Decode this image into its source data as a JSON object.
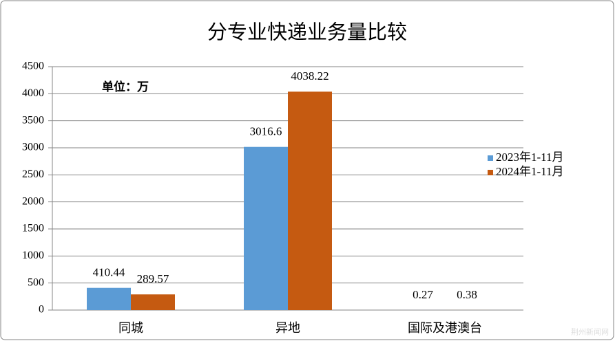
{
  "chart_data": {
    "type": "bar",
    "title": "分专业快递业务量比较",
    "annotation": "单位：万",
    "watermark": "荆州新闻网",
    "categories": [
      "同城",
      "异地",
      "国际及港澳台"
    ],
    "series": [
      {
        "name": "2023年1-11月",
        "color": "#5b9bd5",
        "values": [
          410.44,
          3016.6,
          0.27
        ]
      },
      {
        "name": "2024年1-11月",
        "color": "#c55a11",
        "values": [
          289.57,
          4038.22,
          0.38
        ]
      }
    ],
    "ylim": [
      0,
      4500
    ],
    "yticks": [
      0,
      500,
      1000,
      1500,
      2000,
      2500,
      3000,
      3500,
      4000,
      4500
    ],
    "grid": true,
    "legend": "right"
  }
}
